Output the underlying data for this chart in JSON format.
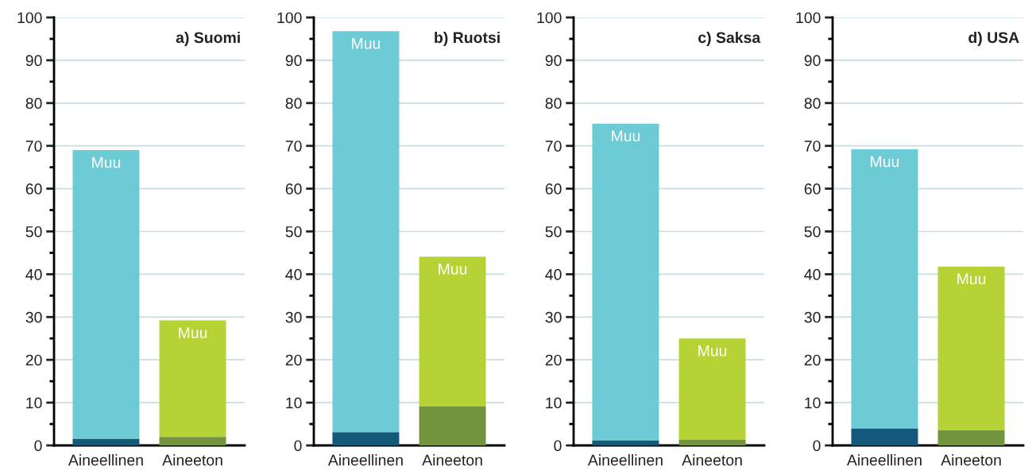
{
  "chart_data": [
    {
      "type": "bar",
      "title": "a) Suomi",
      "stacked": true,
      "categories": [
        "Aineellinen",
        "Aineeton"
      ],
      "ylim": [
        0,
        100
      ],
      "yticks": [
        0,
        {
          "value": 5,
          "label": null
        },
        10,
        {
          "value": 15,
          "label": null
        },
        20,
        {
          "value": 25,
          "label": null
        },
        30,
        {
          "value": 35,
          "label": null
        },
        40,
        {
          "value": 45,
          "label": null
        },
        50,
        {
          "value": 55,
          "label": null
        },
        60,
        {
          "value": 65,
          "label": null
        },
        70,
        {
          "value": 75,
          "label": null
        },
        80,
        {
          "value": 85,
          "label": null
        },
        90,
        {
          "value": 95,
          "label": null
        },
        100
      ],
      "grid": "y",
      "series": [
        {
          "colors": [
            "#12597a",
            "#72943c"
          ],
          "values": [
            1.6,
            2.0
          ]
        },
        {
          "name": "Muu",
          "colors": [
            "#6ccbd5",
            "#b5d334"
          ],
          "values": [
            67.4,
            27.2
          ]
        }
      ]
    },
    {
      "type": "bar",
      "title": "b) Ruotsi",
      "stacked": true,
      "categories": [
        "Aineellinen",
        "Aineeton"
      ],
      "ylim": [
        0,
        100
      ],
      "yticks": [
        0,
        {
          "value": 5,
          "label": null
        },
        10,
        {
          "value": 15,
          "label": null
        },
        20,
        {
          "value": 25,
          "label": null
        },
        30,
        {
          "value": 35,
          "label": null
        },
        40,
        {
          "value": 45,
          "label": null
        },
        50,
        {
          "value": 55,
          "label": null
        },
        60,
        {
          "value": 65,
          "label": null
        },
        70,
        {
          "value": 75,
          "label": null
        },
        80,
        {
          "value": 85,
          "label": null
        },
        90,
        {
          "value": 95,
          "label": null
        },
        100
      ],
      "grid": "y",
      "series": [
        {
          "colors": [
            "#12597a",
            "#72943c"
          ],
          "values": [
            3.1,
            9.1
          ]
        },
        {
          "name": "Muu",
          "colors": [
            "#6ccbd5",
            "#b5d334"
          ],
          "values": [
            93.7,
            35.0
          ]
        }
      ]
    },
    {
      "type": "bar",
      "title": "c) Saksa",
      "stacked": true,
      "categories": [
        "Aineellinen",
        "Aineeton"
      ],
      "ylim": [
        0,
        100
      ],
      "yticks": [
        0,
        {
          "value": 5,
          "label": null
        },
        10,
        {
          "value": 15,
          "label": null
        },
        20,
        {
          "value": 25,
          "label": null
        },
        30,
        {
          "value": 35,
          "label": null
        },
        40,
        {
          "value": 45,
          "label": null
        },
        50,
        {
          "value": 55,
          "label": null
        },
        60,
        {
          "value": 65,
          "label": null
        },
        70,
        {
          "value": 75,
          "label": null
        },
        80,
        {
          "value": 85,
          "label": null
        },
        90,
        {
          "value": 95,
          "label": null
        },
        100
      ],
      "grid": "y",
      "series": [
        {
          "colors": [
            "#12597a",
            "#72943c"
          ],
          "values": [
            1.2,
            1.4
          ]
        },
        {
          "name": "Muu",
          "colors": [
            "#6ccbd5",
            "#b5d334"
          ],
          "values": [
            74.0,
            23.6
          ]
        }
      ]
    },
    {
      "type": "bar",
      "title": "d) USA",
      "stacked": true,
      "categories": [
        "Aineellinen",
        "Aineeton"
      ],
      "ylim": [
        0,
        100
      ],
      "yticks": [
        0,
        {
          "value": 5,
          "label": null
        },
        10,
        {
          "value": 15,
          "label": null
        },
        20,
        {
          "value": 25,
          "label": null
        },
        30,
        {
          "value": 35,
          "label": null
        },
        40,
        {
          "value": 45,
          "label": null
        },
        50,
        {
          "value": 55,
          "label": null
        },
        60,
        {
          "value": 65,
          "label": null
        },
        70,
        {
          "value": 75,
          "label": null
        },
        80,
        {
          "value": 85,
          "label": null
        },
        90,
        {
          "value": 95,
          "label": null
        },
        100
      ],
      "grid": "y",
      "series": [
        {
          "colors": [
            "#12597a",
            "#72943c"
          ],
          "values": [
            4.0,
            3.6
          ]
        },
        {
          "name": "Muu",
          "colors": [
            "#6ccbd5",
            "#b5d334"
          ],
          "values": [
            65.2,
            38.2
          ]
        }
      ]
    }
  ]
}
